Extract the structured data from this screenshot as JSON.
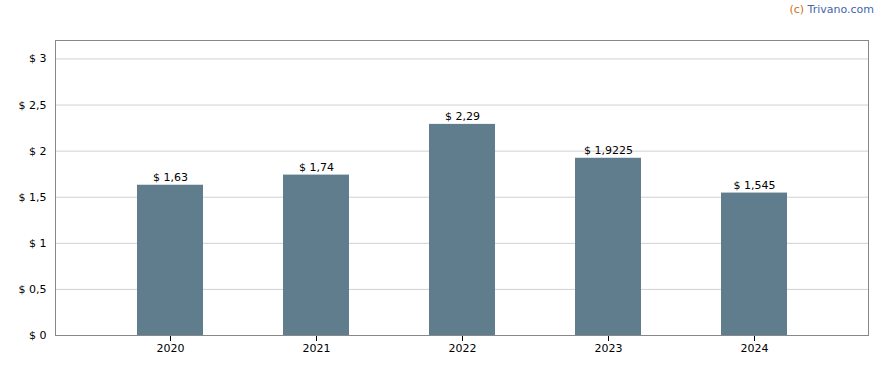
{
  "chart_data": {
    "type": "bar",
    "categories": [
      "2020",
      "2021",
      "2022",
      "2023",
      "2024"
    ],
    "values": [
      1.63,
      1.74,
      2.29,
      1.9225,
      1.545
    ],
    "value_labels": [
      "$ 1,63",
      "$ 1,74",
      "$ 2,29",
      "$ 1,9225",
      "$ 1,545"
    ],
    "data_labels": true,
    "color": "#5f7d8c",
    "ylim": [
      0,
      3.2
    ],
    "yticks": [
      {
        "value": 0,
        "label": "$ 0"
      },
      {
        "value": 0.5,
        "label": "$ 0,5"
      },
      {
        "value": 1.0,
        "label": "$ 1"
      },
      {
        "value": 1.5,
        "label": "$ 1,5"
      },
      {
        "value": 2.0,
        "label": "$ 2"
      },
      {
        "value": 2.5,
        "label": "$ 2,5"
      },
      {
        "value": 3.0,
        "label": "$ 3"
      }
    ],
    "grid": true,
    "annotations": [
      {
        "text": "(c)",
        "color": "#c87020"
      },
      {
        "text": "Trivano.com",
        "color": "#4466aa"
      }
    ]
  }
}
